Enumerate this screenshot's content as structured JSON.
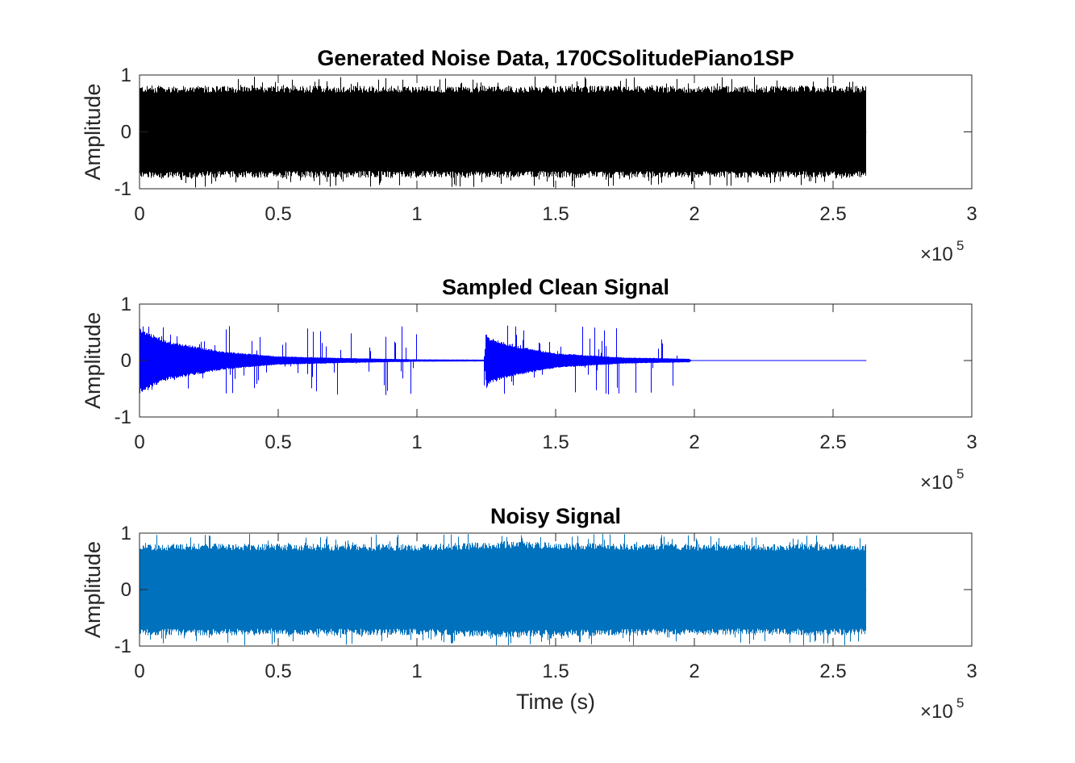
{
  "chart_data": [
    {
      "type": "line",
      "title": "Generated Noise Data, 170CSolitudePiano1SP",
      "xlabel": "",
      "ylabel": "Amplitude",
      "xlim": [
        0,
        300000
      ],
      "ylim": [
        -1,
        1
      ],
      "xticks": [
        0,
        0.5,
        1,
        1.5,
        2,
        2.5,
        3
      ],
      "xtick_labels": [
        "0",
        "0.5",
        "1",
        "1.5",
        "2",
        "2.5",
        "3"
      ],
      "yticks": [
        -1,
        0,
        1
      ],
      "ytick_labels": [
        "-1",
        "0",
        "1"
      ],
      "x_exponent_base": "×10",
      "x_exponent_power": "5",
      "grid": false,
      "series": [
        {
          "name": "noise",
          "color": "#000000",
          "x_end": 262000,
          "envelope_x": [
            0,
            25000,
            50000,
            75000,
            100000,
            125000,
            150000,
            175000,
            200000,
            225000,
            250000,
            262000
          ],
          "envelope_amplitude": [
            0.75,
            0.75,
            0.75,
            0.75,
            0.75,
            0.75,
            0.75,
            0.75,
            0.75,
            0.75,
            0.75,
            0.75
          ],
          "peak_amplitude": 0.98
        }
      ]
    },
    {
      "type": "line",
      "title": "Sampled Clean Signal",
      "xlabel": "",
      "ylabel": "Amplitude",
      "xlim": [
        0,
        300000
      ],
      "ylim": [
        -1,
        1
      ],
      "xticks": [
        0,
        0.5,
        1,
        1.5,
        2,
        2.5,
        3
      ],
      "xtick_labels": [
        "0",
        "0.5",
        "1",
        "1.5",
        "2",
        "2.5",
        "3"
      ],
      "yticks": [
        -1,
        0,
        1
      ],
      "ytick_labels": [
        "-1",
        "0",
        "1"
      ],
      "x_exponent_base": "×10",
      "x_exponent_power": "5",
      "grid": false,
      "series": [
        {
          "name": "clean",
          "color": "#0000ff",
          "x_end": 262000,
          "envelope_x": [
            0,
            1500,
            10000,
            30000,
            50000,
            75000,
            100000,
            124000,
            125000,
            126000,
            135000,
            150000,
            175000,
            198000,
            199000,
            262000
          ],
          "envelope_amplitude": [
            0.55,
            0.5,
            0.32,
            0.15,
            0.07,
            0.04,
            0.02,
            0.015,
            0.45,
            0.38,
            0.25,
            0.12,
            0.05,
            0.03,
            0.0,
            0.0
          ],
          "peak_amplitude": 0.62
        }
      ]
    },
    {
      "type": "line",
      "title": "Noisy Signal",
      "xlabel": "Time (s)",
      "ylabel": "Amplitude",
      "xlim": [
        0,
        300000
      ],
      "ylim": [
        -1,
        1
      ],
      "xticks": [
        0,
        0.5,
        1,
        1.5,
        2,
        2.5,
        3
      ],
      "xtick_labels": [
        "0",
        "0.5",
        "1",
        "1.5",
        "2",
        "2.5",
        "3"
      ],
      "yticks": [
        -1,
        0,
        1
      ],
      "ytick_labels": [
        "-1",
        "0",
        "1"
      ],
      "x_exponent_base": "×10",
      "x_exponent_power": "5",
      "grid": false,
      "series": [
        {
          "name": "noisy",
          "color": "#0072bd",
          "x_end": 262000,
          "envelope_x": [
            0,
            25000,
            50000,
            75000,
            100000,
            125000,
            130000,
            150000,
            175000,
            200000,
            225000,
            250000,
            262000
          ],
          "envelope_amplitude": [
            0.75,
            0.76,
            0.75,
            0.75,
            0.75,
            0.78,
            0.8,
            0.77,
            0.76,
            0.75,
            0.75,
            0.75,
            0.75
          ],
          "peak_amplitude": 1.0
        }
      ]
    }
  ]
}
